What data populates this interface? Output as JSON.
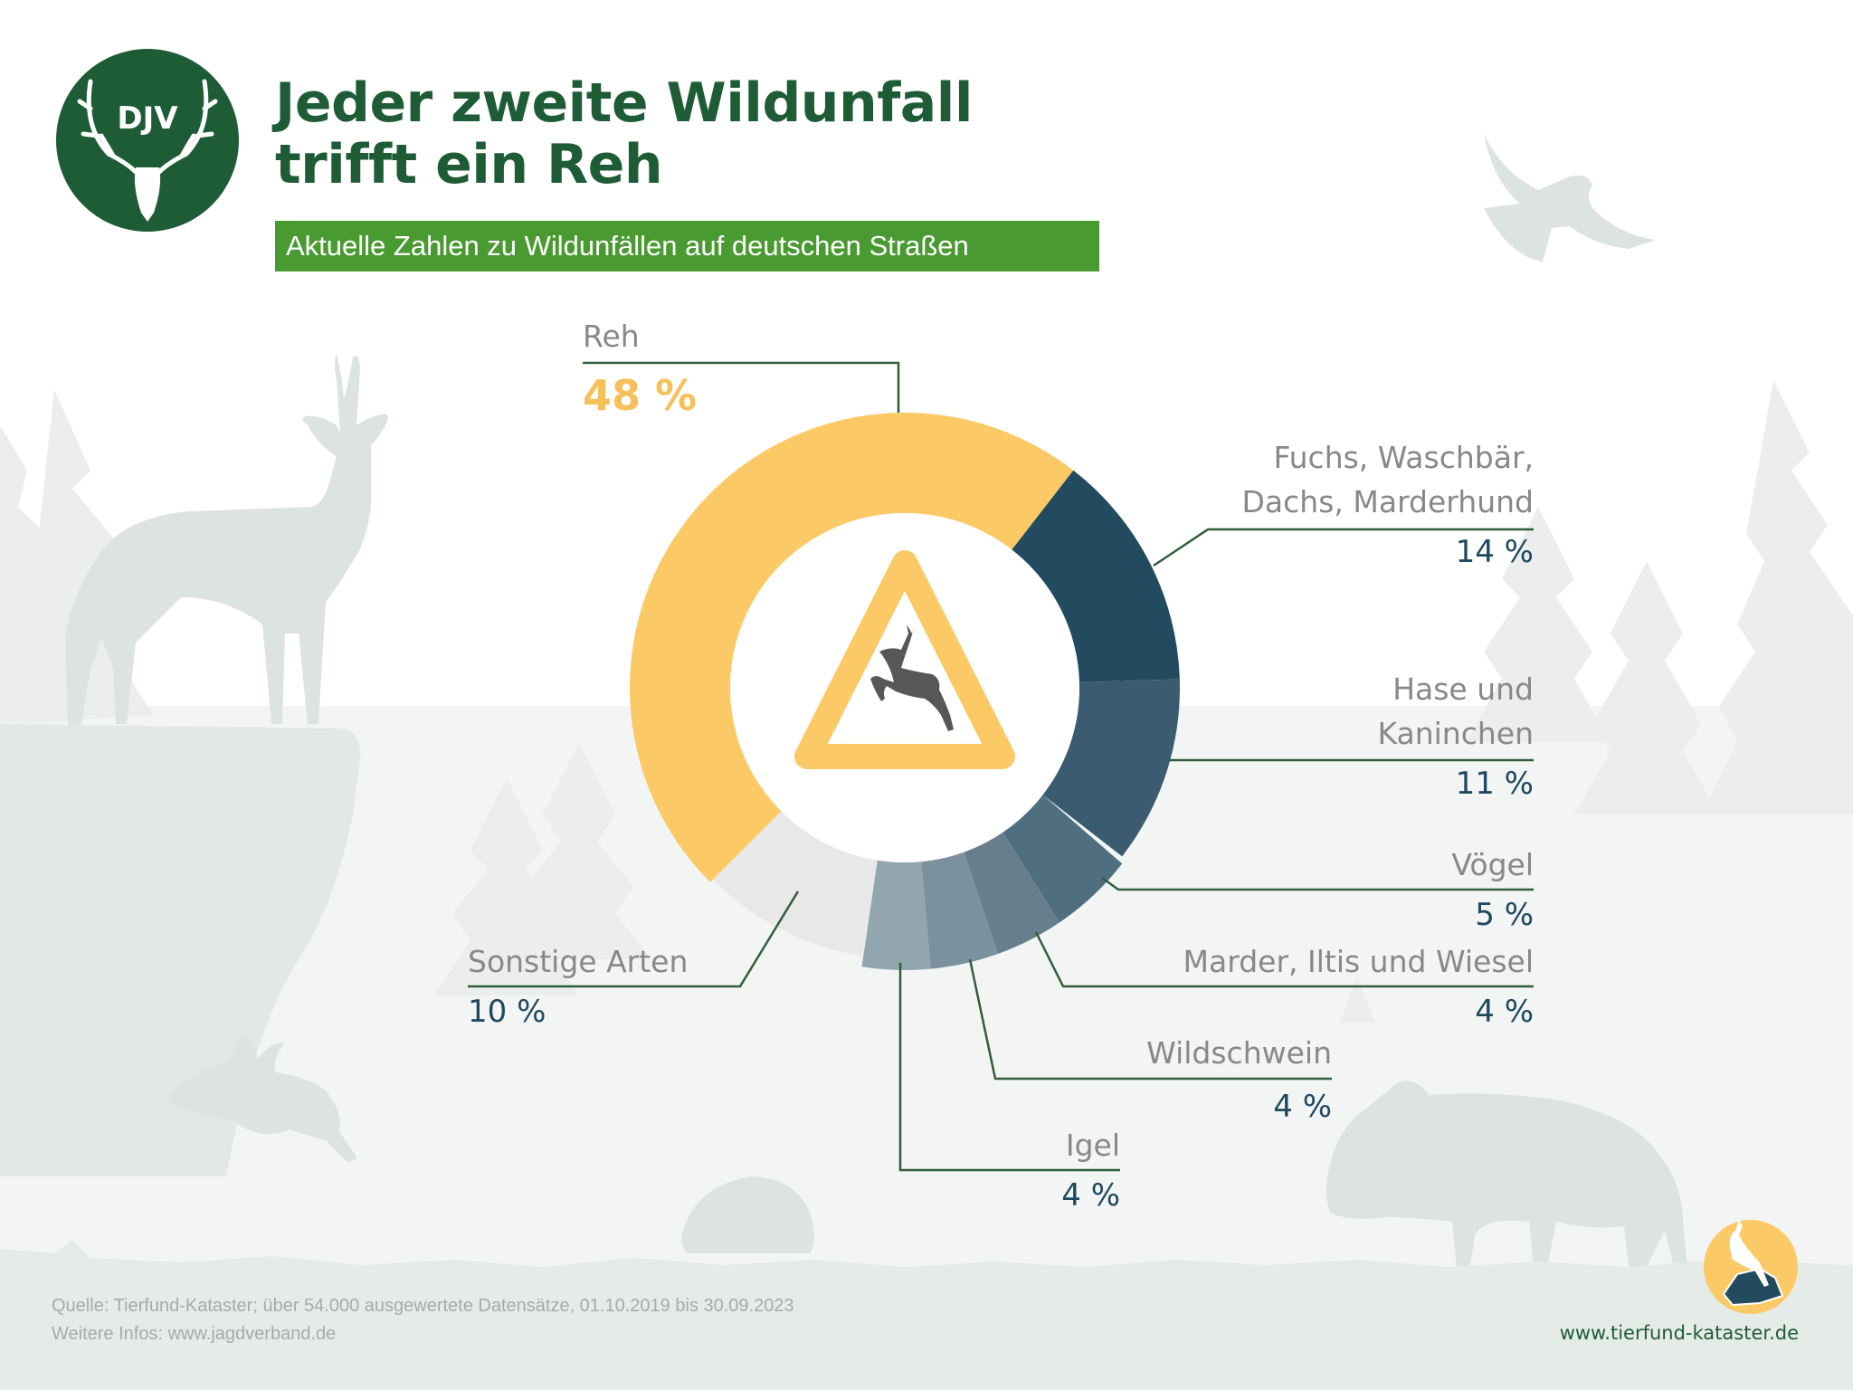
{
  "header": {
    "logo_text": "DJV",
    "title_line1": "Jeder zweite Wildunfall",
    "title_line2": "trifft ein Reh",
    "subtitle": "Aktuelle Zahlen zu Wildunfällen auf deutschen Straßen"
  },
  "chart_data": {
    "type": "pie",
    "variant": "donut",
    "title": "Jeder zweite Wildunfall trifft ein Reh",
    "subtitle": "Aktuelle Zahlen zu Wildunfällen auf deutschen Straßen",
    "unit": "%",
    "center_icon": "deer-crossing-warning-sign",
    "slices": [
      {
        "label": "Reh",
        "value": 48,
        "value_label": "48 %",
        "color": "#fbc966"
      },
      {
        "label": "Fuchs, Waschbär, Dachs, Marderhund",
        "label_lines": [
          "Fuchs, Waschbär,",
          "Dachs, Marderhund"
        ],
        "value": 14,
        "value_label": "14 %",
        "color": "#234b60"
      },
      {
        "label": "Hase und Kaninchen",
        "label_lines": [
          "Hase und",
          "Kaninchen"
        ],
        "value": 11,
        "value_label": "11 %",
        "color": "#3b5c70"
      },
      {
        "label": "Vögel",
        "value": 5,
        "value_label": "5 %",
        "color": "#4f6e80"
      },
      {
        "label": "Marder, Iltis und Wiesel",
        "value": 4,
        "value_label": "4 %",
        "color": "#677f8d"
      },
      {
        "label": "Wildschwein",
        "value": 4,
        "value_label": "4 %",
        "color": "#7b919d"
      },
      {
        "label": "Igel",
        "value": 4,
        "value_label": "4 %",
        "color": "#92a6b0"
      },
      {
        "label": "Sonstige Arten",
        "value": 10,
        "value_label": "10 %",
        "color": "#e8e8e8"
      }
    ]
  },
  "colors": {
    "brand_green": "#1e5c36",
    "subtitle_green": "#4a9a32",
    "leader_line": "#2f5e3a",
    "silhouette": "#dde4e0",
    "label_gray": "#86888b",
    "value_blue": "#1f4960",
    "reh_yellow": "#f6c05a"
  },
  "footer": {
    "source": "Quelle: Tierfund-Kataster; über 54.000 ausgewertete Datensätze, 01.10.2019 bis 30.09.2023",
    "more_info": "Weitere Infos: www.jagdverband.de",
    "partner_url": "www.tierfund-kataster.de"
  }
}
